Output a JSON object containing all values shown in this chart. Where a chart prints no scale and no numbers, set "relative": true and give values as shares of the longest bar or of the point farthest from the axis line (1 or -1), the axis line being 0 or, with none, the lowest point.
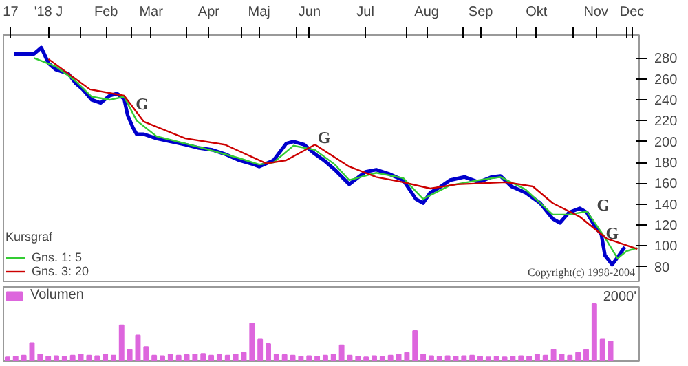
{
  "chart_data": [
    {
      "type": "line",
      "legend_title": "Kursgraf",
      "legend": "bottom left",
      "grid": false,
      "marker": "none",
      "line_style": "solid",
      "xlim": [
        "2017-12-20",
        "2018-12-08"
      ],
      "xticks": [
        {
          "value": "2017-12-24",
          "label": "17"
        },
        {
          "value": "2018-01-14",
          "label": "'18 J"
        },
        {
          "value": "2018-02-01",
          "label": null
        },
        {
          "value": "2018-02-15",
          "label": "Feb"
        },
        {
          "value": "2018-03-01",
          "label": null
        },
        {
          "value": "2018-03-12",
          "label": "Mar"
        },
        {
          "value": "2018-04-01",
          "label": null
        },
        {
          "value": "2018-04-13",
          "label": "Apr"
        },
        {
          "value": "2018-05-01",
          "label": null
        },
        {
          "value": "2018-05-11",
          "label": "Maj"
        },
        {
          "value": "2018-06-01",
          "label": null
        },
        {
          "value": "2018-06-08",
          "label": "Jun"
        },
        {
          "value": "2018-07-09",
          "label": "Jul"
        },
        {
          "value": "2018-08-01",
          "label": null
        },
        {
          "value": "2018-08-12",
          "label": "Aug"
        },
        {
          "value": "2018-09-01",
          "label": null
        },
        {
          "value": "2018-09-11",
          "label": "Sep"
        },
        {
          "value": "2018-10-01",
          "label": null
        },
        {
          "value": "2018-10-12",
          "label": "Okt"
        },
        {
          "value": "2018-11-01",
          "label": null
        },
        {
          "value": "2018-11-14",
          "label": "Nov"
        },
        {
          "value": "2018-12-01",
          "label": null
        },
        {
          "value": "2018-12-04",
          "label": "Dec"
        }
      ],
      "ylim": [
        66,
        302
      ],
      "yticks": [
        80,
        100,
        120,
        140,
        160,
        180,
        200,
        220,
        240,
        260,
        280
      ],
      "series": [
        {
          "color": "#0000cc",
          "x": [
            "2017-12-26",
            "2018-01-06",
            "2018-01-10",
            "2018-01-14",
            "2018-01-18",
            "2018-01-25",
            "2018-01-29",
            "2018-02-02",
            "2018-02-07",
            "2018-02-12",
            "2018-02-17",
            "2018-02-21",
            "2018-02-25",
            "2018-02-27",
            "2018-03-02",
            "2018-03-04",
            "2018-03-08",
            "2018-03-15",
            "2018-03-23",
            "2018-03-31",
            "2018-04-07",
            "2018-04-15",
            "2018-04-22",
            "2018-04-30",
            "2018-05-08",
            "2018-05-11",
            "2018-05-19",
            "2018-05-26",
            "2018-05-30",
            "2018-06-05",
            "2018-06-11",
            "2018-06-16",
            "2018-06-22",
            "2018-06-26",
            "2018-06-30",
            "2018-07-09",
            "2018-07-15",
            "2018-07-22",
            "2018-07-30",
            "2018-08-06",
            "2018-08-10",
            "2018-08-14",
            "2018-08-20",
            "2018-08-25",
            "2018-09-02",
            "2018-09-10",
            "2018-09-17",
            "2018-09-22",
            "2018-09-28",
            "2018-10-06",
            "2018-10-14",
            "2018-10-21",
            "2018-10-25",
            "2018-10-30",
            "2018-11-05",
            "2018-11-09",
            "2018-11-13",
            "2018-11-17",
            "2018-11-19",
            "2018-11-23",
            "2018-11-26",
            "2018-11-30"
          ],
          "values": [
            284,
            284,
            290,
            275,
            269,
            265,
            256,
            250,
            240,
            237,
            244,
            246,
            241,
            225,
            213,
            207,
            207,
            203,
            200,
            197,
            194,
            192,
            188,
            182,
            178,
            176,
            182,
            198,
            200,
            197,
            188,
            182,
            173,
            166,
            159,
            171,
            173,
            169,
            163,
            145,
            141,
            151,
            157,
            163,
            166,
            161,
            166,
            167,
            157,
            151,
            141,
            126,
            122,
            132,
            136,
            132,
            120,
            111,
            91,
            82,
            89,
            99
          ]
        },
        {
          "name": "Gns. 1: 5",
          "color": "#33cc33",
          "x": [
            "2018-01-06",
            "2018-01-18",
            "2018-01-29",
            "2018-02-07",
            "2018-02-17",
            "2018-02-25",
            "2018-03-04",
            "2018-03-15",
            "2018-04-07",
            "2018-04-30",
            "2018-05-11",
            "2018-05-19",
            "2018-05-30",
            "2018-06-11",
            "2018-06-22",
            "2018-06-30",
            "2018-07-15",
            "2018-07-30",
            "2018-08-10",
            "2018-08-25",
            "2018-09-10",
            "2018-09-22",
            "2018-10-06",
            "2018-10-21",
            "2018-10-30",
            "2018-11-09",
            "2018-11-19",
            "2018-11-26",
            "2018-12-01",
            "2018-12-07"
          ],
          "values": [
            280,
            272,
            258,
            243,
            240,
            243,
            220,
            205,
            195,
            184,
            178,
            180,
            196,
            192,
            178,
            163,
            170,
            165,
            145,
            158,
            163,
            166,
            154,
            130,
            130,
            133,
            108,
            88,
            95,
            98
          ]
        },
        {
          "name": "Gns. 3: 20",
          "color": "#cc0000",
          "x": [
            "2018-01-14",
            "2018-02-06",
            "2018-02-25",
            "2018-03-08",
            "2018-03-31",
            "2018-04-22",
            "2018-05-15",
            "2018-05-26",
            "2018-06-11",
            "2018-06-30",
            "2018-07-15",
            "2018-07-30",
            "2018-08-14",
            "2018-08-29",
            "2018-09-25",
            "2018-10-10",
            "2018-10-21",
            "2018-11-05",
            "2018-11-20",
            "2018-12-07"
          ],
          "values": [
            279,
            250,
            244,
            219,
            203,
            197,
            179,
            182,
            197,
            176,
            166,
            161,
            155,
            159,
            161,
            157,
            141,
            128,
            107,
            97
          ]
        }
      ],
      "annotations": [
        {
          "text": "G",
          "x": "2018-03-05",
          "y": 224
        },
        {
          "text": "G",
          "x": "2018-06-14",
          "y": 192
        },
        {
          "text": "G",
          "x": "2018-11-16",
          "y": 127
        },
        {
          "text": "G",
          "x": "2018-11-21",
          "y": 100
        },
        "Copyright(c) 1998-2004"
      ]
    },
    {
      "type": "bar",
      "relative": true,
      "legend": "top left",
      "grid": false,
      "categories": [
        null,
        null,
        null,
        null,
        null,
        null,
        null,
        null,
        null,
        null,
        null,
        null,
        null,
        null,
        null,
        null,
        null,
        null,
        null,
        null,
        null,
        null,
        null,
        null,
        null,
        null,
        null,
        null,
        null,
        null,
        null,
        null,
        null,
        null,
        null,
        null,
        null,
        null,
        null,
        null,
        null,
        null,
        null,
        null,
        null,
        null,
        null,
        null,
        null,
        null,
        null,
        null,
        null,
        null,
        null,
        null,
        null,
        null,
        null,
        null,
        null,
        null,
        null,
        null,
        null,
        null,
        null,
        null,
        null,
        null,
        null,
        null,
        null,
        null,
        null
      ],
      "series": [
        {
          "name": "Volumen",
          "color": "#dd66dd",
          "values": [
            0.07,
            0.08,
            0.1,
            0.32,
            0.12,
            0.08,
            0.09,
            0.08,
            0.1,
            0.12,
            0.1,
            0.09,
            0.12,
            0.1,
            0.63,
            0.2,
            0.45,
            0.25,
            0.1,
            0.09,
            0.12,
            0.1,
            0.11,
            0.12,
            0.13,
            0.1,
            0.11,
            0.1,
            0.12,
            0.15,
            0.66,
            0.38,
            0.3,
            0.12,
            0.11,
            0.1,
            0.08,
            0.09,
            0.08,
            0.1,
            0.12,
            0.28,
            0.1,
            0.08,
            0.07,
            0.09,
            0.08,
            0.1,
            0.12,
            0.15,
            0.53,
            0.12,
            0.09,
            0.08,
            0.09,
            0.08,
            0.09,
            0.1,
            0.08,
            0.07,
            0.08,
            0.07,
            0.08,
            0.09,
            0.08,
            0.12,
            0.1,
            0.2,
            0.12,
            0.1,
            0.15,
            0.2,
            1.0,
            0.38,
            0.35
          ]
        }
      ],
      "annotations": [
        "2000'"
      ]
    }
  ]
}
